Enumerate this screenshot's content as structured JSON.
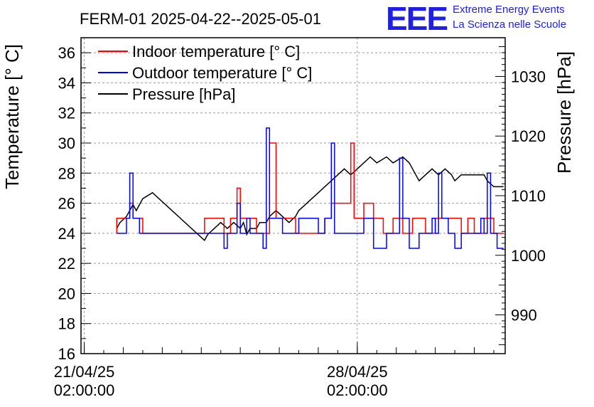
{
  "header": {
    "title": "FERM-01 2025-04-22--2025-05-01",
    "logo": "EEE",
    "logo_line1": "Extreme Energy Events",
    "logo_line2": "La Scienza nelle Scuole"
  },
  "chart_data": {
    "type": "line",
    "title": "FERM-01 2025-04-22--2025-05-01",
    "ylabel": "Temperature [° C]",
    "y2label": "Pressure [hPa]",
    "ylim": [
      16,
      37
    ],
    "y2lim": [
      983.5,
      1036.5
    ],
    "yticks": [
      "16",
      "18",
      "20",
      "22",
      "24",
      "26",
      "28",
      "30",
      "32",
      "34",
      "36"
    ],
    "y2ticks": [
      "990",
      "1000",
      "1010",
      "1020",
      "1030"
    ],
    "xlim": [
      "2025-04-21 00:00",
      "2025-05-01 21:00"
    ],
    "xticks": [
      {
        "x": "2025-04-21 02:00",
        "line1": "21/04/25",
        "line2": "02:00:00"
      },
      {
        "x": "2025-04-28 02:00",
        "line1": "28/04/25",
        "line2": "02:00:00"
      }
    ],
    "grid": true,
    "legend_position": "top-left",
    "series": [
      {
        "name": "Indoor temperature [° C]",
        "axis": "left",
        "color": "#ff0000",
        "points": [
          [
            "2025-04-21 22:00",
            24
          ],
          [
            "2025-04-21 22:00",
            25
          ],
          [
            "2025-04-22 06:00",
            25
          ],
          [
            "2025-04-22 06:00",
            26
          ],
          [
            "2025-04-22 08:00",
            26
          ],
          [
            "2025-04-22 08:00",
            25
          ],
          [
            "2025-04-22 14:00",
            25
          ],
          [
            "2025-04-22 14:00",
            24
          ],
          [
            "2025-04-24 04:00",
            24
          ],
          [
            "2025-04-24 04:00",
            25
          ],
          [
            "2025-04-24 16:00",
            25
          ],
          [
            "2025-04-24 16:00",
            24
          ],
          [
            "2025-04-24 20:00",
            24
          ],
          [
            "2025-04-24 20:00",
            25
          ],
          [
            "2025-04-25 00:00",
            25
          ],
          [
            "2025-04-25 00:00",
            27
          ],
          [
            "2025-04-25 02:00",
            27
          ],
          [
            "2025-04-25 02:00",
            25
          ],
          [
            "2025-04-25 12:00",
            25
          ],
          [
            "2025-04-25 12:00",
            24
          ],
          [
            "2025-04-25 20:00",
            24
          ],
          [
            "2025-04-25 20:00",
            30
          ],
          [
            "2025-04-26 00:00",
            30
          ],
          [
            "2025-04-26 00:00",
            25
          ],
          [
            "2025-04-26 12:00",
            25
          ],
          [
            "2025-04-26 12:00",
            24
          ],
          [
            "2025-04-27 06:00",
            24
          ],
          [
            "2025-04-27 06:00",
            25
          ],
          [
            "2025-04-27 10:00",
            25
          ],
          [
            "2025-04-27 10:00",
            26
          ],
          [
            "2025-04-27 22:00",
            26
          ],
          [
            "2025-04-27 22:00",
            30
          ],
          [
            "2025-04-28 00:00",
            30
          ],
          [
            "2025-04-28 00:00",
            25
          ],
          [
            "2025-04-28 06:00",
            25
          ],
          [
            "2025-04-28 06:00",
            26
          ],
          [
            "2025-04-28 12:00",
            26
          ],
          [
            "2025-04-28 12:00",
            25
          ],
          [
            "2025-04-28 18:00",
            25
          ],
          [
            "2025-04-28 18:00",
            24
          ],
          [
            "2025-04-29 00:00",
            24
          ],
          [
            "2025-04-29 00:00",
            25
          ],
          [
            "2025-04-29 06:00",
            25
          ],
          [
            "2025-04-29 06:00",
            24
          ],
          [
            "2025-04-29 12:00",
            24
          ],
          [
            "2025-04-29 12:00",
            25
          ],
          [
            "2025-04-29 20:00",
            25
          ],
          [
            "2025-04-29 20:00",
            24
          ],
          [
            "2025-04-30 02:00",
            24
          ],
          [
            "2025-04-30 02:00",
            25
          ],
          [
            "2025-04-30 18:00",
            25
          ],
          [
            "2025-04-30 18:00",
            24
          ],
          [
            "2025-04-30 22:00",
            24
          ],
          [
            "2025-04-30 22:00",
            25
          ],
          [
            "2025-05-01 02:00",
            25
          ],
          [
            "2025-05-01 02:00",
            24
          ],
          [
            "2025-05-01 08:00",
            24
          ],
          [
            "2025-05-01 08:00",
            25
          ],
          [
            "2025-05-01 14:00",
            25
          ],
          [
            "2025-05-01 14:00",
            24
          ],
          [
            "2025-05-01 20:00",
            24
          ]
        ]
      },
      {
        "name": "Outdoor temperature [° C]",
        "axis": "left",
        "color": "#0000ff",
        "points": [
          [
            "2025-04-21 22:00",
            24
          ],
          [
            "2025-04-22 04:00",
            24
          ],
          [
            "2025-04-22 04:00",
            25
          ],
          [
            "2025-04-22 06:00",
            25
          ],
          [
            "2025-04-22 06:00",
            28
          ],
          [
            "2025-04-22 08:00",
            28
          ],
          [
            "2025-04-22 08:00",
            25
          ],
          [
            "2025-04-22 12:00",
            25
          ],
          [
            "2025-04-22 12:00",
            24
          ],
          [
            "2025-04-24 16:00",
            24
          ],
          [
            "2025-04-24 16:00",
            23
          ],
          [
            "2025-04-24 18:00",
            23
          ],
          [
            "2025-04-24 18:00",
            24
          ],
          [
            "2025-04-25 00:00",
            24
          ],
          [
            "2025-04-25 00:00",
            26
          ],
          [
            "2025-04-25 02:00",
            26
          ],
          [
            "2025-04-25 02:00",
            24
          ],
          [
            "2025-04-25 06:00",
            24
          ],
          [
            "2025-04-25 06:00",
            25
          ],
          [
            "2025-04-25 08:00",
            25
          ],
          [
            "2025-04-25 08:00",
            24
          ],
          [
            "2025-04-25 16:00",
            24
          ],
          [
            "2025-04-25 16:00",
            23
          ],
          [
            "2025-04-25 18:00",
            23
          ],
          [
            "2025-04-25 18:00",
            31
          ],
          [
            "2025-04-25 20:00",
            31
          ],
          [
            "2025-04-25 20:00",
            25
          ],
          [
            "2025-04-26 04:00",
            25
          ],
          [
            "2025-04-26 04:00",
            24
          ],
          [
            "2025-04-26 14:00",
            24
          ],
          [
            "2025-04-26 14:00",
            25
          ],
          [
            "2025-04-27 02:00",
            25
          ],
          [
            "2025-04-27 02:00",
            24
          ],
          [
            "2025-04-27 06:00",
            24
          ],
          [
            "2025-04-27 06:00",
            25
          ],
          [
            "2025-04-27 10:00",
            25
          ],
          [
            "2025-04-27 10:00",
            30
          ],
          [
            "2025-04-27 12:00",
            30
          ],
          [
            "2025-04-27 12:00",
            24
          ],
          [
            "2025-04-28 06:00",
            24
          ],
          [
            "2025-04-28 06:00",
            25
          ],
          [
            "2025-04-28 12:00",
            25
          ],
          [
            "2025-04-28 12:00",
            23
          ],
          [
            "2025-04-28 20:00",
            23
          ],
          [
            "2025-04-28 20:00",
            24
          ],
          [
            "2025-04-29 04:00",
            24
          ],
          [
            "2025-04-29 04:00",
            29
          ],
          [
            "2025-04-29 06:00",
            29
          ],
          [
            "2025-04-29 06:00",
            25
          ],
          [
            "2025-04-29 10:00",
            25
          ],
          [
            "2025-04-29 10:00",
            23
          ],
          [
            "2025-04-29 16:00",
            23
          ],
          [
            "2025-04-29 16:00",
            24
          ],
          [
            "2025-04-30 00:00",
            24
          ],
          [
            "2025-04-30 00:00",
            25
          ],
          [
            "2025-04-30 02:00",
            25
          ],
          [
            "2025-04-30 02:00",
            24
          ],
          [
            "2025-04-30 04:00",
            24
          ],
          [
            "2025-04-30 04:00",
            28
          ],
          [
            "2025-04-30 06:00",
            28
          ],
          [
            "2025-04-30 06:00",
            25
          ],
          [
            "2025-04-30 10:00",
            25
          ],
          [
            "2025-04-30 10:00",
            24
          ],
          [
            "2025-04-30 14:00",
            24
          ],
          [
            "2025-04-30 14:00",
            23
          ],
          [
            "2025-04-30 18:00",
            23
          ],
          [
            "2025-04-30 18:00",
            24
          ],
          [
            "2025-05-01 06:00",
            24
          ],
          [
            "2025-05-01 06:00",
            25
          ],
          [
            "2025-05-01 08:00",
            25
          ],
          [
            "2025-05-01 08:00",
            24
          ],
          [
            "2025-05-01 10:00",
            24
          ],
          [
            "2025-05-01 10:00",
            28
          ],
          [
            "2025-05-01 12:00",
            28
          ],
          [
            "2025-05-01 12:00",
            24
          ],
          [
            "2025-05-01 16:00",
            24
          ],
          [
            "2025-05-01 16:00",
            23
          ],
          [
            "2025-05-01 20:00",
            23
          ]
        ]
      },
      {
        "name": "Pressure [hPa]",
        "axis": "right",
        "color": "#000000",
        "points": [
          [
            "2025-04-21 22:00",
            1004.5
          ],
          [
            "2025-04-22 00:00",
            1005.5
          ],
          [
            "2025-04-22 04:00",
            1006.5
          ],
          [
            "2025-04-22 06:00",
            1007.5
          ],
          [
            "2025-04-22 08:00",
            1008.5
          ],
          [
            "2025-04-22 10:00",
            1007.5
          ],
          [
            "2025-04-22 12:00",
            1008.5
          ],
          [
            "2025-04-22 14:00",
            1009.5
          ],
          [
            "2025-04-22 20:00",
            1010.5
          ],
          [
            "2025-04-24 04:00",
            1002.5
          ],
          [
            "2025-04-24 06:00",
            1003.5
          ],
          [
            "2025-04-24 10:00",
            1004.5
          ],
          [
            "2025-04-24 14:00",
            1005.5
          ],
          [
            "2025-04-24 18:00",
            1004.5
          ],
          [
            "2025-04-24 22:00",
            1005.5
          ],
          [
            "2025-04-25 02:00",
            1004.5
          ],
          [
            "2025-04-25 04:00",
            1005.5
          ],
          [
            "2025-04-25 06:00",
            1003.5
          ],
          [
            "2025-04-25 08:00",
            1004.5
          ],
          [
            "2025-04-25 12:00",
            1004.5
          ],
          [
            "2025-04-25 14:00",
            1005.5
          ],
          [
            "2025-04-25 18:00",
            1005.5
          ],
          [
            "2025-04-25 20:00",
            1006.5
          ],
          [
            "2025-04-26 00:00",
            1007.5
          ],
          [
            "2025-04-26 04:00",
            1006.5
          ],
          [
            "2025-04-26 08:00",
            1005.5
          ],
          [
            "2025-04-26 12:00",
            1006.5
          ],
          [
            "2025-04-26 14:00",
            1007.5
          ],
          [
            "2025-04-26 18:00",
            1008.5
          ],
          [
            "2025-04-26 22:00",
            1009.5
          ],
          [
            "2025-04-27 02:00",
            1010.5
          ],
          [
            "2025-04-27 06:00",
            1011.5
          ],
          [
            "2025-04-27 10:00",
            1012.5
          ],
          [
            "2025-04-27 14:00",
            1013.5
          ],
          [
            "2025-04-27 18:00",
            1014.5
          ],
          [
            "2025-04-27 22:00",
            1013.5
          ],
          [
            "2025-04-28 02:00",
            1014.5
          ],
          [
            "2025-04-28 06:00",
            1015.5
          ],
          [
            "2025-04-28 10:00",
            1016.5
          ],
          [
            "2025-04-28 14:00",
            1015.5
          ],
          [
            "2025-04-28 20:00",
            1016.5
          ],
          [
            "2025-04-29 00:00",
            1015.5
          ],
          [
            "2025-04-29 06:00",
            1016.5
          ],
          [
            "2025-04-29 10:00",
            1015.5
          ],
          [
            "2025-04-29 12:00",
            1014.5
          ],
          [
            "2025-04-29 14:00",
            1013.5
          ],
          [
            "2025-04-29 16:00",
            1012.5
          ],
          [
            "2025-04-29 20:00",
            1013.5
          ],
          [
            "2025-04-30 00:00",
            1014.5
          ],
          [
            "2025-04-30 04:00",
            1013.5
          ],
          [
            "2025-04-30 08:00",
            1014.5
          ],
          [
            "2025-04-30 12:00",
            1013.5
          ],
          [
            "2025-04-30 14:00",
            1012.5
          ],
          [
            "2025-04-30 18:00",
            1013.5
          ],
          [
            "2025-05-01 08:00",
            1013.5
          ],
          [
            "2025-05-01 10:00",
            1012.5
          ],
          [
            "2025-05-01 14:00",
            1011.5
          ],
          [
            "2025-05-01 20:00",
            1011.5
          ]
        ]
      }
    ]
  }
}
